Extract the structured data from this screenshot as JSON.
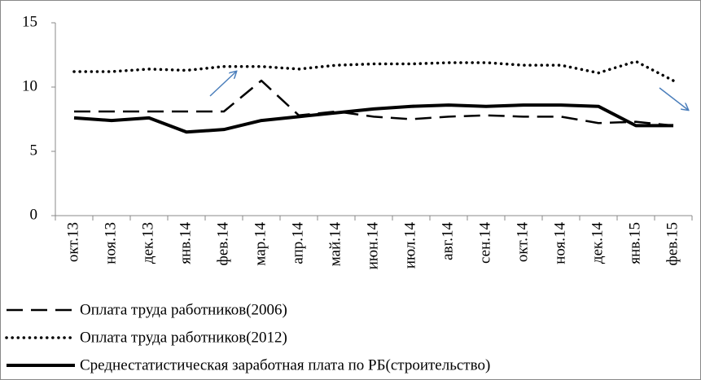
{
  "chart_data": {
    "type": "line",
    "categories": [
      "окт.13",
      "ноя.13",
      "дек.13",
      "янв.14",
      "фев.14",
      "мар.14",
      "апр.14",
      "май.14",
      "июн.14",
      "июл.14",
      "авг.14",
      "сен.14",
      "окт.14",
      "ноя.14",
      "дек.14",
      "янв.15",
      "фев.15"
    ],
    "series": [
      {
        "name": "Оплата труда работников(2006)",
        "color": "#000000",
        "style": "dashed",
        "values": [
          8.1,
          8.1,
          8.1,
          8.1,
          8.1,
          10.5,
          7.8,
          8.1,
          7.7,
          7.5,
          7.7,
          7.8,
          7.7,
          7.7,
          7.2,
          7.3,
          7.0
        ]
      },
      {
        "name": "Оплата труда работников(2012)",
        "color": "#000000",
        "style": "dotted",
        "values": [
          11.2,
          11.2,
          11.4,
          11.3,
          11.6,
          11.6,
          11.4,
          11.7,
          11.8,
          11.8,
          11.9,
          11.9,
          11.7,
          11.7,
          11.1,
          12.0,
          10.5
        ]
      },
      {
        "name": "Среднестатистическая заработная плата по РБ(строительство)",
        "color": "#000000",
        "style": "solid",
        "values": [
          7.6,
          7.4,
          7.6,
          6.5,
          6.7,
          7.4,
          7.7,
          8.0,
          8.3,
          8.5,
          8.6,
          8.5,
          8.6,
          8.6,
          8.5,
          7.0,
          7.0
        ]
      }
    ],
    "ylim": [
      0,
      15
    ],
    "yticks": [
      0,
      5,
      10,
      15
    ],
    "legend": "bottom"
  }
}
